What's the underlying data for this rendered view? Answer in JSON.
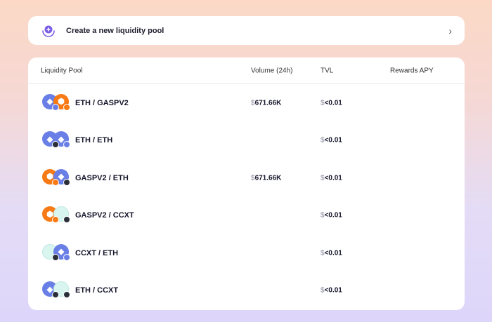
{
  "create": {
    "label": "Create a new liquidity pool",
    "icon": "plus-circle-icon"
  },
  "table": {
    "headers": {
      "pool": "Liquidity Pool",
      "volume": "Volume (24h)",
      "tvl": "TVL",
      "apy": "Rewards APY"
    },
    "currency": "$",
    "rows": [
      {
        "pair": "ETH / GASPV2",
        "volume": "671.66K",
        "tvl": "<0.01",
        "apy": "",
        "tokens": [
          "eth",
          "gaspv2"
        ],
        "badges": [
          "eth",
          "gaspv2"
        ]
      },
      {
        "pair": "ETH / ETH",
        "volume": "",
        "tvl": "<0.01",
        "apy": "",
        "tokens": [
          "eth",
          "eth"
        ],
        "badges": [
          "dark",
          "eth"
        ]
      },
      {
        "pair": "GASPV2 / ETH",
        "volume": "671.66K",
        "tvl": "<0.01",
        "apy": "",
        "tokens": [
          "gaspv2",
          "eth"
        ],
        "badges": [
          "gaspv2",
          "dark"
        ]
      },
      {
        "pair": "GASPV2 / CCXT",
        "volume": "",
        "tvl": "<0.01",
        "apy": "",
        "tokens": [
          "gaspv2",
          "ccxt"
        ],
        "badges": [
          "gaspv2",
          "dark"
        ]
      },
      {
        "pair": "CCXT / ETH",
        "volume": "",
        "tvl": "<0.01",
        "apy": "",
        "tokens": [
          "ccxt",
          "eth"
        ],
        "badges": [
          "dark",
          "eth"
        ]
      },
      {
        "pair": "ETH / CCXT",
        "volume": "",
        "tvl": "<0.01",
        "apy": "",
        "tokens": [
          "eth",
          "ccxt"
        ],
        "badges": [
          "dark",
          "dark"
        ]
      }
    ]
  },
  "colors": {
    "eth": "#6a7fe6",
    "gaspv2": "#f77a14",
    "ccxt": "#d9f5f0",
    "dark": "#2b2f3a",
    "accent": "#7b5ce6"
  }
}
